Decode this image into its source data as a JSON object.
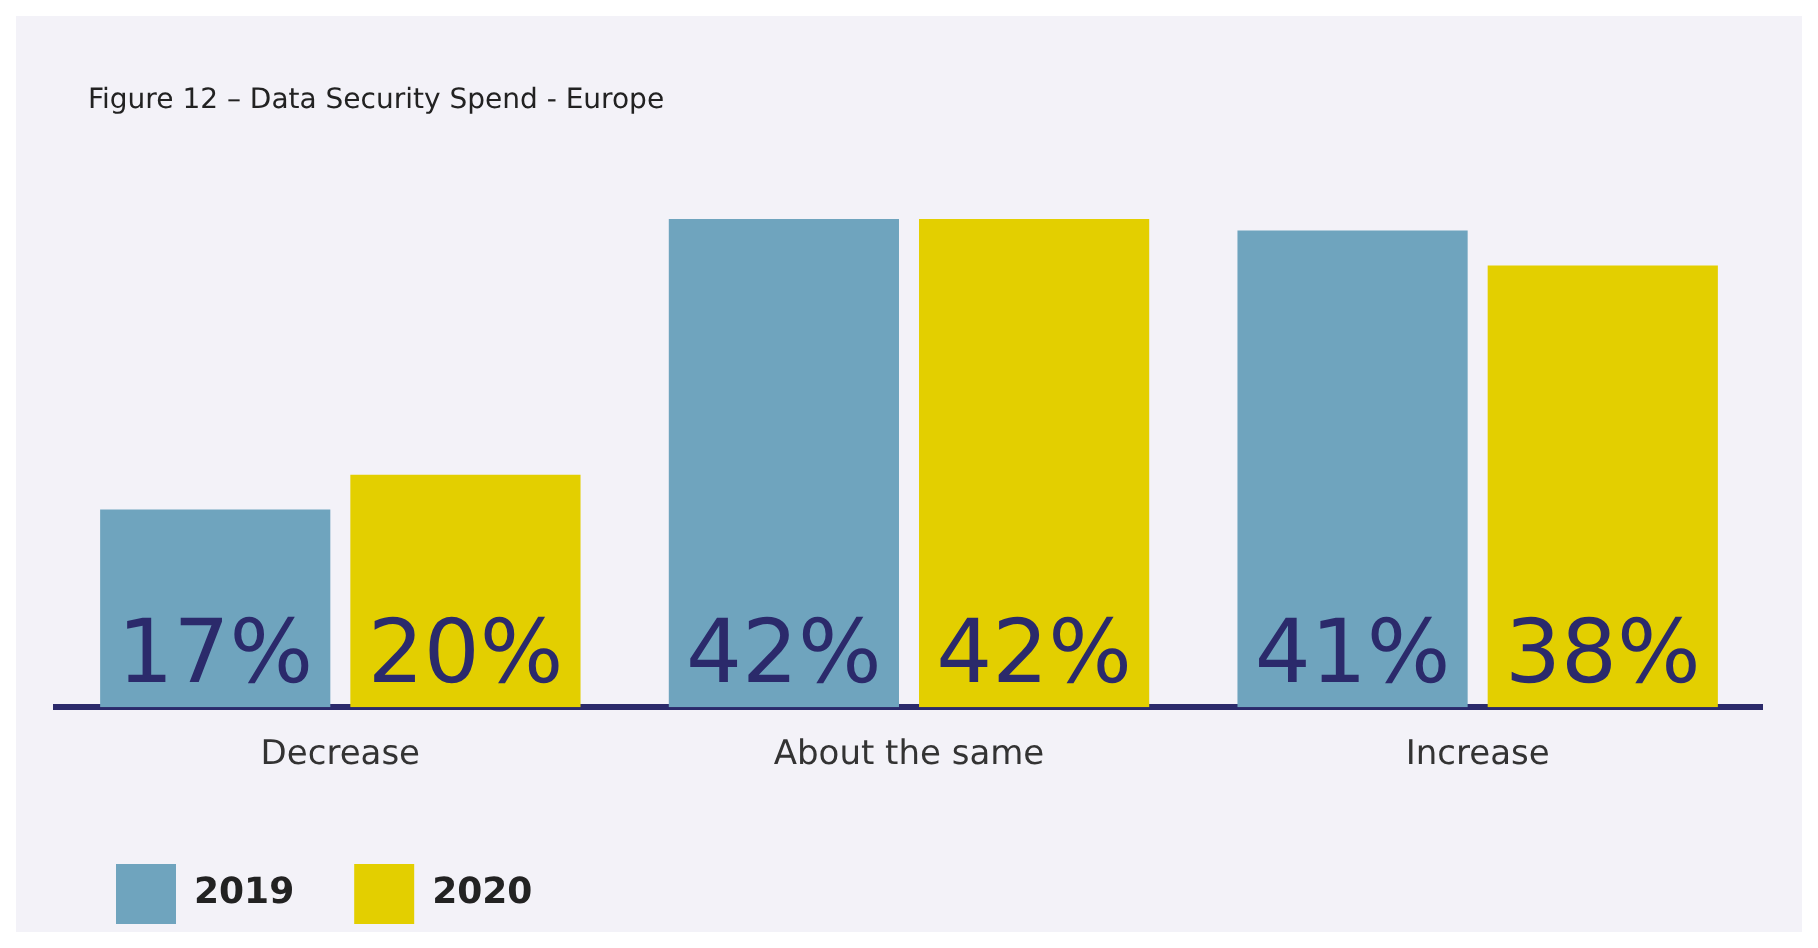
{
  "chart_data": {
    "type": "bar",
    "title": "Figure 12 – Data Security Spend - Europe",
    "categories": [
      "Decrease",
      "About the same",
      "Increase"
    ],
    "series": [
      {
        "name": "2019",
        "color": "#6fa4be",
        "values": [
          17,
          42,
          41
        ],
        "value_labels": [
          "17%",
          "42%",
          "41%"
        ]
      },
      {
        "name": "2020",
        "color": "#e3cf00",
        "values": [
          20,
          42,
          38
        ],
        "value_labels": [
          "20%",
          "42%",
          "38%"
        ]
      }
    ],
    "grid": false,
    "legend": "bottom left"
  }
}
